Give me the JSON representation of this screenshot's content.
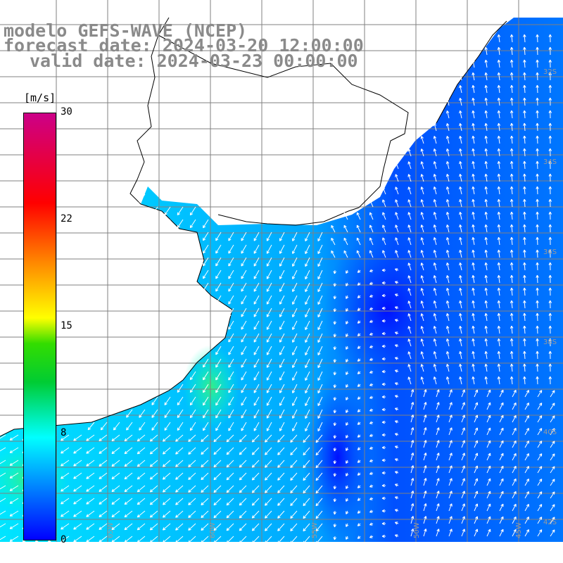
{
  "title": {
    "line1": "modelo GEFS-WAVE (NCEP)",
    "line2": "forecast date: 2024-03-20 12:00:00",
    "line3": "valid date: 2024-03-23 00:00:00"
  },
  "colorbar": {
    "unit": "[m/s]",
    "ticks": [
      {
        "label": "30",
        "value": 30
      },
      {
        "label": "22",
        "value": 22
      },
      {
        "label": "15",
        "value": 15
      },
      {
        "label": "8",
        "value": 8
      },
      {
        "label": "0",
        "value": 0
      }
    ],
    "colors": [
      "#0000ff",
      "#00aaff",
      "#00ffff",
      "#00cc33",
      "#ffff00",
      "#ff8800",
      "#ff0000",
      "#cc0088"
    ]
  },
  "map": {
    "lat_labels": [
      "32S",
      "34S",
      "36S",
      "38S",
      "40S",
      "42S"
    ],
    "lon_labels": [
      "65W",
      "60W",
      "55W",
      "50W",
      "45W"
    ],
    "ocean_colors": [
      "#00ffff",
      "#00ccff",
      "#0099ff",
      "#0066ff",
      "#0033ff",
      "#33ff99"
    ],
    "land_color": "#ffffff",
    "grid_color": "#808080"
  }
}
